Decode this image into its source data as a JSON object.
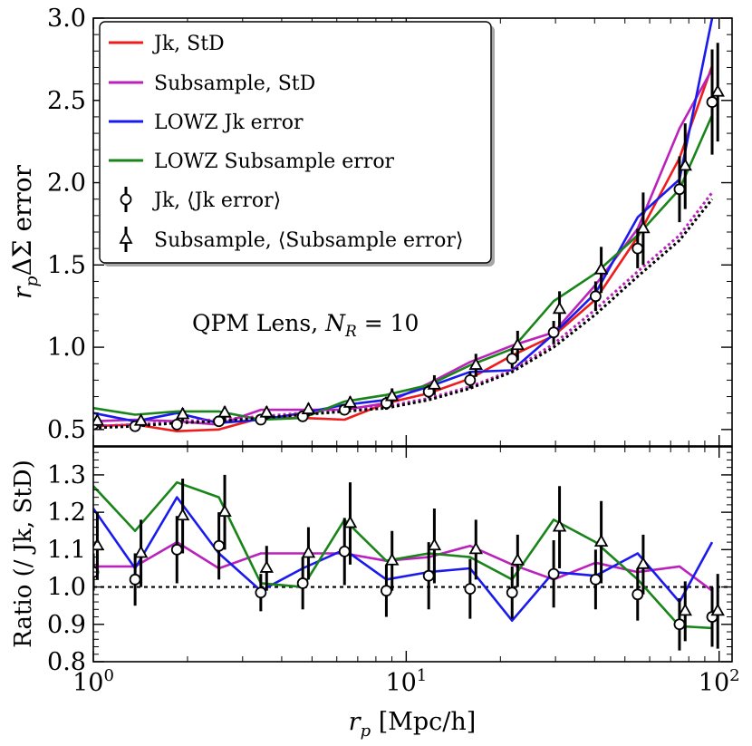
{
  "chart_data": [
    {
      "type": "line",
      "panel": "top",
      "title": "",
      "annotation": {
        "text": "QPM Lens, ",
        "var": "N",
        "sub": "R",
        "rest": " = 10"
      },
      "ylabel": {
        "pre": "r",
        "sub": "p",
        "post": "ΔΣ error"
      },
      "xscale": "log",
      "xlim": [
        1,
        110
      ],
      "ylim": [
        0.4,
        3.0
      ],
      "yticks": [
        "0.5",
        "1.0",
        "1.5",
        "2.0",
        "2.5",
        "3.0"
      ],
      "yticks_val": [
        0.5,
        1.0,
        1.5,
        2.0,
        2.5,
        3.0
      ],
      "legend_position": "top-left",
      "series": [
        {
          "name": "Jk, StD",
          "kind": "line",
          "color": "#ee1c1c",
          "x": [
            1.0,
            1.36,
            1.85,
            2.52,
            3.43,
            4.67,
            6.35,
            8.64,
            11.8,
            16.0,
            21.8,
            29.6,
            40.3,
            54.9,
            74.7,
            95.0
          ],
          "y": [
            0.52,
            0.53,
            0.49,
            0.5,
            0.57,
            0.57,
            0.56,
            0.66,
            0.72,
            0.81,
            0.95,
            1.07,
            1.29,
            1.67,
            2.15,
            2.71
          ]
        },
        {
          "name": "Subsample, StD",
          "kind": "line",
          "color": "#bb22bb",
          "x": [
            1.0,
            1.36,
            1.85,
            2.52,
            3.43,
            4.67,
            6.35,
            8.64,
            11.8,
            16.0,
            21.8,
            29.6,
            40.3,
            54.9,
            74.7,
            95.0
          ],
          "y": [
            0.55,
            0.56,
            0.55,
            0.53,
            0.62,
            0.62,
            0.62,
            0.66,
            0.78,
            0.91,
            1.01,
            1.09,
            1.38,
            1.72,
            2.33,
            2.69
          ]
        },
        {
          "name": "LOWZ Jk error",
          "kind": "line",
          "color": "#1a1aee",
          "x": [
            1.0,
            1.36,
            1.85,
            2.52,
            3.43,
            4.67,
            6.35,
            8.64,
            11.8,
            16.0,
            21.8,
            29.6,
            40.3,
            54.9,
            74.7,
            95.0
          ],
          "y": [
            0.6,
            0.55,
            0.6,
            0.54,
            0.56,
            0.6,
            0.65,
            0.68,
            0.76,
            0.85,
            0.86,
            1.08,
            1.33,
            1.79,
            2.02,
            3.0
          ]
        },
        {
          "name": "LOWZ Subsample error",
          "kind": "line",
          "color": "#198419",
          "x": [
            1.0,
            1.36,
            1.85,
            2.52,
            3.43,
            4.67,
            6.35,
            8.64,
            11.8,
            16.0,
            21.8,
            29.6,
            40.3,
            54.9,
            74.7,
            95.0
          ],
          "y": [
            0.63,
            0.59,
            0.61,
            0.61,
            0.56,
            0.57,
            0.67,
            0.71,
            0.77,
            0.89,
            0.99,
            1.28,
            1.45,
            1.68,
            1.96,
            2.41
          ]
        },
        {
          "name": "Jk, ⟨Jk error⟩",
          "kind": "points",
          "marker": "circle",
          "color": "#000000",
          "x": [
            1.0,
            1.36,
            1.85,
            2.52,
            3.43,
            4.67,
            6.35,
            8.64,
            11.8,
            16.0,
            21.8,
            29.6,
            40.3,
            54.9,
            74.7,
            95.0
          ],
          "y": [
            0.53,
            0.52,
            0.53,
            0.55,
            0.56,
            0.58,
            0.62,
            0.66,
            0.73,
            0.8,
            0.93,
            1.09,
            1.31,
            1.6,
            1.96,
            2.49
          ],
          "err": [
            0.03,
            0.03,
            0.03,
            0.03,
            0.03,
            0.03,
            0.03,
            0.04,
            0.04,
            0.05,
            0.06,
            0.07,
            0.09,
            0.12,
            0.2,
            0.32
          ]
        },
        {
          "name": "Subsample, ⟨Subsample error⟩",
          "kind": "points",
          "marker": "triangle",
          "color": "#000000",
          "x": [
            1.03,
            1.42,
            1.93,
            2.63,
            3.58,
            4.87,
            6.62,
            9.01,
            12.3,
            16.7,
            22.7,
            30.9,
            42.0,
            57.2,
            77.9,
            99.0
          ],
          "y": [
            0.55,
            0.55,
            0.59,
            0.6,
            0.6,
            0.62,
            0.66,
            0.7,
            0.77,
            0.89,
            1.01,
            1.23,
            1.47,
            1.72,
            2.1,
            2.55
          ],
          "err": [
            0.03,
            0.03,
            0.04,
            0.04,
            0.04,
            0.04,
            0.04,
            0.05,
            0.06,
            0.07,
            0.09,
            0.11,
            0.14,
            0.22,
            0.26,
            0.3
          ]
        },
        {
          "name": "prediction-magenta",
          "kind": "dotted",
          "color": "#bb22bb",
          "legend": false,
          "x": [
            1.0,
            1.36,
            1.85,
            2.52,
            3.43,
            4.67,
            6.35,
            8.64,
            11.8,
            16.0,
            21.8,
            29.6,
            40.3,
            54.9,
            74.7,
            95.0
          ],
          "y": [
            0.52,
            0.53,
            0.55,
            0.56,
            0.58,
            0.6,
            0.62,
            0.64,
            0.69,
            0.76,
            0.86,
            1.02,
            1.23,
            1.46,
            1.68,
            1.94
          ]
        },
        {
          "name": "prediction-black",
          "kind": "dotted",
          "color": "#000000",
          "legend": false,
          "x": [
            1.0,
            1.36,
            1.85,
            2.52,
            3.43,
            4.67,
            6.35,
            8.64,
            11.8,
            16.0,
            21.8,
            29.6,
            40.3,
            54.9,
            74.7,
            95.0
          ],
          "y": [
            0.51,
            0.52,
            0.54,
            0.55,
            0.57,
            0.59,
            0.61,
            0.63,
            0.68,
            0.75,
            0.85,
            1.0,
            1.2,
            1.43,
            1.65,
            1.9
          ]
        }
      ]
    },
    {
      "type": "line",
      "panel": "bottom",
      "ylabel": "Ratio (/ Jk, StD)",
      "xlabel": {
        "pre": "r",
        "sub": "p",
        "post": " [Mpc/h]"
      },
      "xscale": "log",
      "xlim": [
        1,
        110
      ],
      "ylim": [
        0.8,
        1.375
      ],
      "yticks": [
        "0.8",
        "0.9",
        "1.0",
        "1.1",
        "1.2",
        "1.3"
      ],
      "yticks_val": [
        0.8,
        0.9,
        1.0,
        1.1,
        1.2,
        1.3
      ],
      "xticks": [
        {
          "base": "10",
          "exp": "0",
          "val": 1
        },
        {
          "base": "10",
          "exp": "1",
          "val": 10
        },
        {
          "base": "10",
          "exp": "2",
          "val": 100
        }
      ],
      "reference_line": 1.0,
      "series": [
        {
          "name": "Subsample, StD",
          "kind": "line",
          "color": "#bb22bb",
          "x": [
            1.0,
            1.36,
            1.85,
            2.52,
            3.43,
            4.67,
            6.35,
            8.64,
            11.8,
            16.0,
            21.8,
            29.6,
            40.3,
            54.9,
            74.7,
            95.0
          ],
          "y": [
            1.055,
            1.055,
            1.12,
            1.05,
            1.09,
            1.09,
            1.09,
            1.07,
            1.08,
            1.11,
            1.06,
            1.02,
            1.065,
            1.04,
            1.055,
            0.99
          ]
        },
        {
          "name": "LOWZ Jk error",
          "kind": "line",
          "color": "#1a1aee",
          "x": [
            1.0,
            1.36,
            1.85,
            2.52,
            3.43,
            4.67,
            6.35,
            8.64,
            11.8,
            16.0,
            21.8,
            29.6,
            40.3,
            54.9,
            74.7,
            95.0
          ],
          "y": [
            1.21,
            1.05,
            1.24,
            1.09,
            0.99,
            1.05,
            1.1,
            1.02,
            1.04,
            1.05,
            0.91,
            1.04,
            1.03,
            1.09,
            0.96,
            1.12
          ]
        },
        {
          "name": "LOWZ Subsample error",
          "kind": "line",
          "color": "#198419",
          "x": [
            1.0,
            1.36,
            1.85,
            2.52,
            3.43,
            4.67,
            6.35,
            8.64,
            11.8,
            16.0,
            21.8,
            29.6,
            40.3,
            54.9,
            74.7,
            95.0
          ],
          "y": [
            1.27,
            1.15,
            1.28,
            1.24,
            1.01,
            1.0,
            1.18,
            1.07,
            1.09,
            1.08,
            1.02,
            1.18,
            1.12,
            1.02,
            0.895,
            0.89
          ]
        },
        {
          "name": "Jk, ⟨Jk error⟩",
          "kind": "points",
          "marker": "circle",
          "color": "#000000",
          "x": [
            1.0,
            1.36,
            1.85,
            2.52,
            3.43,
            4.67,
            6.35,
            8.64,
            11.8,
            16.0,
            21.8,
            29.6,
            40.3,
            54.9,
            74.7,
            95.0
          ],
          "y": [
            1.04,
            1.02,
            1.1,
            1.11,
            0.985,
            1.01,
            1.095,
            0.99,
            1.03,
            0.995,
            0.985,
            1.035,
            1.02,
            0.98,
            0.9,
            0.92
          ],
          "err": [
            0.05,
            0.07,
            0.09,
            0.09,
            0.05,
            0.07,
            0.09,
            0.07,
            0.09,
            0.08,
            0.07,
            0.09,
            0.08,
            0.07,
            0.07,
            0.08
          ]
        },
        {
          "name": "Subsample, ⟨Subsample error⟩",
          "kind": "points",
          "marker": "triangle",
          "color": "#000000",
          "x": [
            1.03,
            1.42,
            1.93,
            2.63,
            3.58,
            4.87,
            6.62,
            9.01,
            12.3,
            16.7,
            22.7,
            30.9,
            42.0,
            57.2,
            77.9,
            99.0
          ],
          "y": [
            1.11,
            1.09,
            1.19,
            1.2,
            1.05,
            1.09,
            1.17,
            1.07,
            1.11,
            1.1,
            1.07,
            1.16,
            1.12,
            1.06,
            0.935,
            0.935
          ],
          "err": [
            0.09,
            0.09,
            0.1,
            0.1,
            0.06,
            0.07,
            0.11,
            0.08,
            0.1,
            0.08,
            0.07,
            0.11,
            0.11,
            0.08,
            0.08,
            0.1
          ]
        }
      ]
    }
  ]
}
